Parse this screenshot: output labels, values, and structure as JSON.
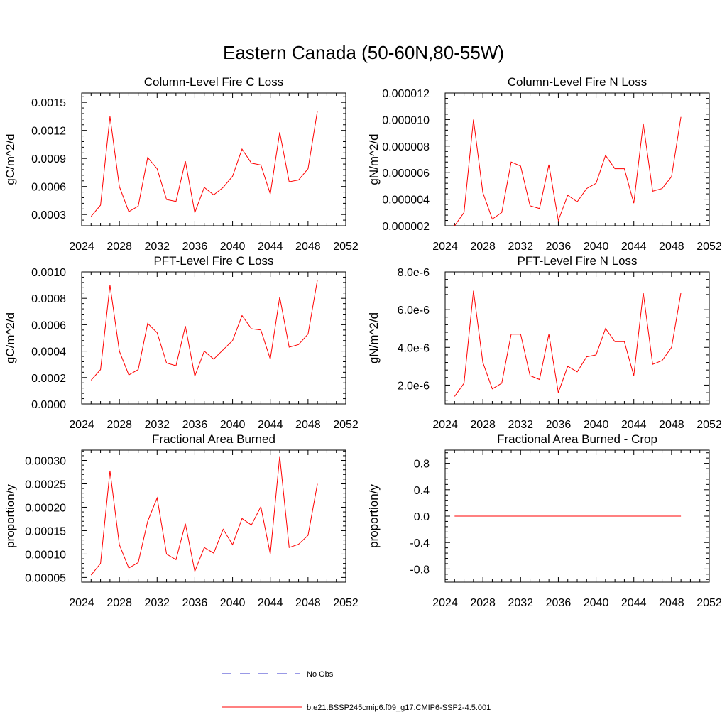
{
  "figure": {
    "title": "Eastern Canada (50-60N,80-55W)"
  },
  "legend": [
    {
      "label": "No Obs",
      "color": "#3333cc",
      "style": "dashed"
    },
    {
      "label": "b.e21.BSSP245cmip6.f09_g17.CMIP6-SSP2-4.5.001",
      "color": "#ff0000",
      "style": "solid"
    }
  ],
  "chart_data": [
    {
      "type": "line",
      "title": "Column-Level Fire C Loss",
      "xlabel": "",
      "ylabel": "gC/m^2/d",
      "xlim": [
        2024,
        2052
      ],
      "ylim": [
        0.00018,
        0.0016
      ],
      "xticks": [
        2024,
        2028,
        2032,
        2036,
        2040,
        2044,
        2048,
        2052
      ],
      "yticks": [
        0.0003,
        0.0006,
        0.0009,
        0.0012,
        0.0015
      ],
      "ytick_labels": [
        "0.0003",
        "0.0006",
        "0.0009",
        "0.0012",
        "0.0015"
      ],
      "x": [
        2025,
        2026,
        2027,
        2028,
        2029,
        2030,
        2031,
        2032,
        2033,
        2034,
        2035,
        2036,
        2037,
        2038,
        2039,
        2040,
        2041,
        2042,
        2043,
        2044,
        2045,
        2046,
        2047,
        2048,
        2049
      ],
      "series": [
        {
          "color": "#ff0000",
          "values": [
            0.00028,
            0.0004,
            0.00135,
            0.0006,
            0.00033,
            0.00039,
            0.00091,
            0.00079,
            0.00046,
            0.00044,
            0.00087,
            0.00032,
            0.00059,
            0.00051,
            0.00059,
            0.00071,
            0.001,
            0.00085,
            0.00083,
            0.00052,
            0.00118,
            0.00065,
            0.00067,
            0.00079,
            0.00141
          ]
        }
      ]
    },
    {
      "type": "line",
      "title": "Column-Level Fire N Loss",
      "xlabel": "",
      "ylabel": "gN/m^2/d",
      "xlim": [
        2024,
        2052
      ],
      "ylim": [
        2e-06,
        1.2e-05
      ],
      "xticks": [
        2024,
        2028,
        2032,
        2036,
        2040,
        2044,
        2048,
        2052
      ],
      "yticks": [
        2e-06,
        4e-06,
        6e-06,
        8e-06,
        1e-05,
        1.2e-05
      ],
      "ytick_labels": [
        "0.000002",
        "0.000004",
        "0.000006",
        "0.000008",
        "0.000010",
        "0.000012"
      ],
      "x": [
        2025,
        2026,
        2027,
        2028,
        2029,
        2030,
        2031,
        2032,
        2033,
        2034,
        2035,
        2036,
        2037,
        2038,
        2039,
        2040,
        2041,
        2042,
        2043,
        2044,
        2045,
        2046,
        2047,
        2048,
        2049
      ],
      "series": [
        {
          "color": "#ff0000",
          "values": [
            2e-06,
            3e-06,
            1e-05,
            4.5e-06,
            2.5e-06,
            3e-06,
            6.8e-06,
            6.5e-06,
            3.5e-06,
            3.3e-06,
            6.6e-06,
            2.4e-06,
            4.3e-06,
            3.8e-06,
            4.8e-06,
            5.2e-06,
            7.3e-06,
            6.3e-06,
            6.3e-06,
            3.7e-06,
            9.7e-06,
            4.6e-06,
            4.8e-06,
            5.7e-06,
            1.02e-05
          ]
        }
      ]
    },
    {
      "type": "line",
      "title": "PFT-Level Fire C Loss",
      "xlabel": "",
      "ylabel": "gC/m^2/d",
      "xlim": [
        2024,
        2052
      ],
      "ylim": [
        0,
        0.001
      ],
      "xticks": [
        2024,
        2028,
        2032,
        2036,
        2040,
        2044,
        2048,
        2052
      ],
      "yticks": [
        0,
        0.0002,
        0.0004,
        0.0006,
        0.0008,
        0.001
      ],
      "ytick_labels": [
        "0.0000",
        "0.0002",
        "0.0004",
        "0.0006",
        "0.0008",
        "0.0010"
      ],
      "x": [
        2025,
        2026,
        2027,
        2028,
        2029,
        2030,
        2031,
        2032,
        2033,
        2034,
        2035,
        2036,
        2037,
        2038,
        2039,
        2040,
        2041,
        2042,
        2043,
        2044,
        2045,
        2046,
        2047,
        2048,
        2049
      ],
      "series": [
        {
          "color": "#ff0000",
          "values": [
            0.00018,
            0.00026,
            0.0009,
            0.0004,
            0.00022,
            0.00026,
            0.00061,
            0.00054,
            0.00031,
            0.00029,
            0.00059,
            0.00021,
            0.0004,
            0.00034,
            0.00041,
            0.00048,
            0.00067,
            0.00057,
            0.00056,
            0.00034,
            0.00081,
            0.00043,
            0.00045,
            0.00053,
            0.00094
          ]
        }
      ]
    },
    {
      "type": "line",
      "title": "PFT-Level Fire N Loss",
      "xlabel": "",
      "ylabel": "gN/m^2/d",
      "xlim": [
        2024,
        2052
      ],
      "ylim": [
        1e-06,
        8e-06
      ],
      "xticks": [
        2024,
        2028,
        2032,
        2036,
        2040,
        2044,
        2048,
        2052
      ],
      "yticks": [
        2e-06,
        4e-06,
        6e-06,
        8e-06
      ],
      "ytick_labels": [
        "2.0e-6",
        "4.0e-6",
        "6.0e-6",
        "8.0e-6"
      ],
      "x": [
        2025,
        2026,
        2027,
        2028,
        2029,
        2030,
        2031,
        2032,
        2033,
        2034,
        2035,
        2036,
        2037,
        2038,
        2039,
        2040,
        2041,
        2042,
        2043,
        2044,
        2045,
        2046,
        2047,
        2048,
        2049
      ],
      "series": [
        {
          "color": "#ff0000",
          "values": [
            1.4e-06,
            2.1e-06,
            7e-06,
            3.2e-06,
            1.8e-06,
            2.1e-06,
            4.7e-06,
            4.7e-06,
            2.5e-06,
            2.3e-06,
            4.7e-06,
            1.6e-06,
            3e-06,
            2.7e-06,
            3.5e-06,
            3.6e-06,
            5e-06,
            4.3e-06,
            4.3e-06,
            2.5e-06,
            6.9e-06,
            3.1e-06,
            3.3e-06,
            4e-06,
            6.9e-06
          ]
        }
      ]
    },
    {
      "type": "line",
      "title": "Fractional Area Burned",
      "xlabel": "",
      "ylabel": "proportion/y",
      "xlim": [
        2024,
        2052
      ],
      "ylim": [
        4e-05,
        0.000322
      ],
      "xticks": [
        2024,
        2028,
        2032,
        2036,
        2040,
        2044,
        2048,
        2052
      ],
      "yticks": [
        5e-05,
        0.0001,
        0.00015,
        0.0002,
        0.00025,
        0.0003
      ],
      "ytick_labels": [
        "0.00005",
        "0.00010",
        "0.00015",
        "0.00020",
        "0.00025",
        "0.00030"
      ],
      "x": [
        2025,
        2026,
        2027,
        2028,
        2029,
        2030,
        2031,
        2032,
        2033,
        2034,
        2035,
        2036,
        2037,
        2038,
        2039,
        2040,
        2041,
        2042,
        2043,
        2044,
        2045,
        2046,
        2047,
        2048,
        2049
      ],
      "series": [
        {
          "color": "#ff0000",
          "values": [
            5.5e-05,
            8e-05,
            0.000278,
            0.00012,
            7e-05,
            8.2e-05,
            0.00017,
            0.00022,
            0.0001,
            8.8e-05,
            0.000165,
            6.3e-05,
            0.000114,
            0.000102,
            0.000153,
            0.00012,
            0.000176,
            0.000162,
            0.000201,
            0.0001,
            0.000309,
            0.000114,
            0.000121,
            0.00014,
            0.00025
          ]
        }
      ]
    },
    {
      "type": "line",
      "title": "Fractional Area Burned - Crop",
      "xlabel": "",
      "ylabel": "proportion/y",
      "xlim": [
        2024,
        2052
      ],
      "ylim": [
        -1,
        1
      ],
      "xticks": [
        2024,
        2028,
        2032,
        2036,
        2040,
        2044,
        2048,
        2052
      ],
      "yticks": [
        -0.8,
        -0.4,
        0,
        0.4,
        0.8
      ],
      "ytick_labels": [
        "-0.8",
        "-0.4",
        "0.0",
        "0.4",
        "0.8"
      ],
      "x": [
        2025,
        2026,
        2027,
        2028,
        2029,
        2030,
        2031,
        2032,
        2033,
        2034,
        2035,
        2036,
        2037,
        2038,
        2039,
        2040,
        2041,
        2042,
        2043,
        2044,
        2045,
        2046,
        2047,
        2048,
        2049
      ],
      "series": [
        {
          "color": "#ff0000",
          "values": [
            0,
            0,
            0,
            0,
            0,
            0,
            0,
            0,
            0,
            0,
            0,
            0,
            0,
            0,
            0,
            0,
            0,
            0,
            0,
            0,
            0,
            0,
            0,
            0,
            0
          ]
        }
      ]
    }
  ]
}
